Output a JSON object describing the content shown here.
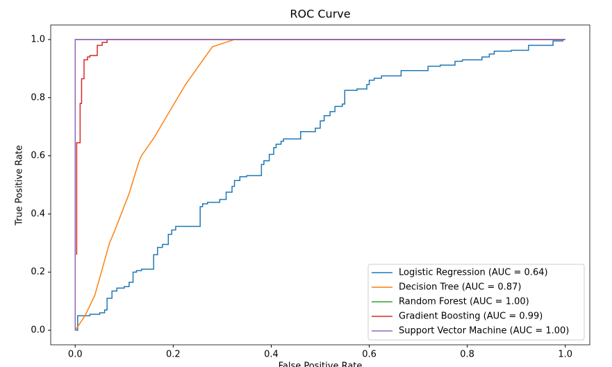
{
  "chart_data": {
    "type": "line",
    "title": "ROC Curve",
    "x_label": "False Positive Rate",
    "y_label": "True Positive Rate",
    "xlim": [
      -0.05,
      1.05
    ],
    "ylim": [
      -0.05,
      1.05
    ],
    "xticks": [
      {
        "value": 0,
        "label": "0.0"
      },
      0.2,
      0.4,
      0.6,
      0.8,
      {
        "value": 1,
        "label": "1.0"
      }
    ],
    "yticks": [
      {
        "value": 0,
        "label": "0.0"
      },
      0.2,
      0.4,
      0.6,
      0.8,
      {
        "value": 1,
        "label": "1.0"
      }
    ],
    "legend": "lower right",
    "grid": false,
    "series": [
      {
        "name": "Logistic Regression (AUC = 0.64)",
        "color": "#1f77b4",
        "x": [
          0,
          0.005,
          0.005,
          0.03,
          0.03,
          0.05,
          0.05,
          0.06,
          0.06,
          0.065,
          0.065,
          0.075,
          0.075,
          0.085,
          0.085,
          0.1,
          0.1,
          0.11,
          0.11,
          0.118,
          0.118,
          0.125,
          0.125,
          0.135,
          0.135,
          0.16,
          0.16,
          0.168,
          0.168,
          0.178,
          0.178,
          0.19,
          0.19,
          0.197,
          0.197,
          0.205,
          0.205,
          0.255,
          0.255,
          0.26,
          0.26,
          0.27,
          0.27,
          0.295,
          0.295,
          0.308,
          0.308,
          0.32,
          0.32,
          0.325,
          0.325,
          0.336,
          0.336,
          0.35,
          0.35,
          0.38,
          0.38,
          0.385,
          0.385,
          0.396,
          0.396,
          0.405,
          0.405,
          0.41,
          0.41,
          0.42,
          0.42,
          0.425,
          0.425,
          0.46,
          0.46,
          0.49,
          0.49,
          0.5,
          0.5,
          0.508,
          0.508,
          0.52,
          0.52,
          0.53,
          0.53,
          0.545,
          0.545,
          0.55,
          0.55,
          0.575,
          0.575,
          0.595,
          0.595,
          0.6,
          0.6,
          0.61,
          0.61,
          0.625,
          0.625,
          0.665,
          0.665,
          0.72,
          0.72,
          0.745,
          0.745,
          0.775,
          0.775,
          0.79,
          0.79,
          0.83,
          0.83,
          0.845,
          0.845,
          0.855,
          0.855,
          0.89,
          0.89,
          0.925,
          0.925,
          0.975,
          0.975,
          0.995,
          0.995,
          1
        ],
        "values": [
          0,
          0,
          0.05,
          0.05,
          0.055,
          0.055,
          0.06,
          0.06,
          0.07,
          0.07,
          0.11,
          0.11,
          0.135,
          0.135,
          0.145,
          0.145,
          0.15,
          0.15,
          0.165,
          0.165,
          0.2,
          0.2,
          0.205,
          0.205,
          0.21,
          0.21,
          0.26,
          0.26,
          0.285,
          0.285,
          0.295,
          0.295,
          0.33,
          0.33,
          0.345,
          0.345,
          0.357,
          0.357,
          0.425,
          0.425,
          0.435,
          0.435,
          0.44,
          0.44,
          0.45,
          0.45,
          0.475,
          0.475,
          0.495,
          0.495,
          0.515,
          0.515,
          0.528,
          0.528,
          0.532,
          0.532,
          0.57,
          0.57,
          0.583,
          0.583,
          0.605,
          0.605,
          0.628,
          0.628,
          0.64,
          0.64,
          0.65,
          0.65,
          0.658,
          0.658,
          0.683,
          0.683,
          0.695,
          0.695,
          0.72,
          0.72,
          0.738,
          0.738,
          0.752,
          0.752,
          0.77,
          0.77,
          0.778,
          0.778,
          0.825,
          0.825,
          0.83,
          0.83,
          0.845,
          0.845,
          0.86,
          0.86,
          0.867,
          0.867,
          0.875,
          0.875,
          0.893,
          0.893,
          0.908,
          0.908,
          0.912,
          0.912,
          0.925,
          0.925,
          0.93,
          0.93,
          0.94,
          0.94,
          0.95,
          0.95,
          0.96,
          0.96,
          0.963,
          0.963,
          0.98,
          0.98,
          0.995,
          0.995,
          1,
          1
        ]
      },
      {
        "name": "Decision Tree (AUC = 0.87)",
        "color": "#ff7f0e",
        "x": [
          0,
          0.02,
          0.04,
          0.07,
          0.08,
          0.11,
          0.13,
          0.135,
          0.16,
          0.225,
          0.28,
          0.325,
          1
        ],
        "values": [
          0,
          0.05,
          0.12,
          0.3,
          0.34,
          0.47,
          0.58,
          0.6,
          0.66,
          0.845,
          0.975,
          1,
          1
        ]
      },
      {
        "name": "Random Forest (AUC = 1.00)",
        "color": "#2ca02c",
        "x": [
          0,
          0,
          1
        ],
        "values": [
          0,
          1,
          1
        ]
      },
      {
        "name": "Gradient Boosting (AUC = 0.99)",
        "color": "#d62728",
        "x": [
          0.003,
          0.003,
          0.01,
          0.01,
          0.013,
          0.013,
          0.018,
          0.018,
          0.025,
          0.025,
          0.03,
          0.03,
          0.045,
          0.045,
          0.055,
          0.055,
          0.065,
          0.065,
          1
        ],
        "values": [
          0.26,
          0.645,
          0.645,
          0.78,
          0.78,
          0.865,
          0.865,
          0.93,
          0.93,
          0.94,
          0.94,
          0.945,
          0.945,
          0.98,
          0.98,
          0.99,
          0.99,
          1,
          1
        ]
      },
      {
        "name": "Support Vector Machine (AUC = 1.00)",
        "color": "#9467bd",
        "x": [
          0,
          0,
          1
        ],
        "values": [
          0,
          1,
          1
        ]
      }
    ]
  }
}
